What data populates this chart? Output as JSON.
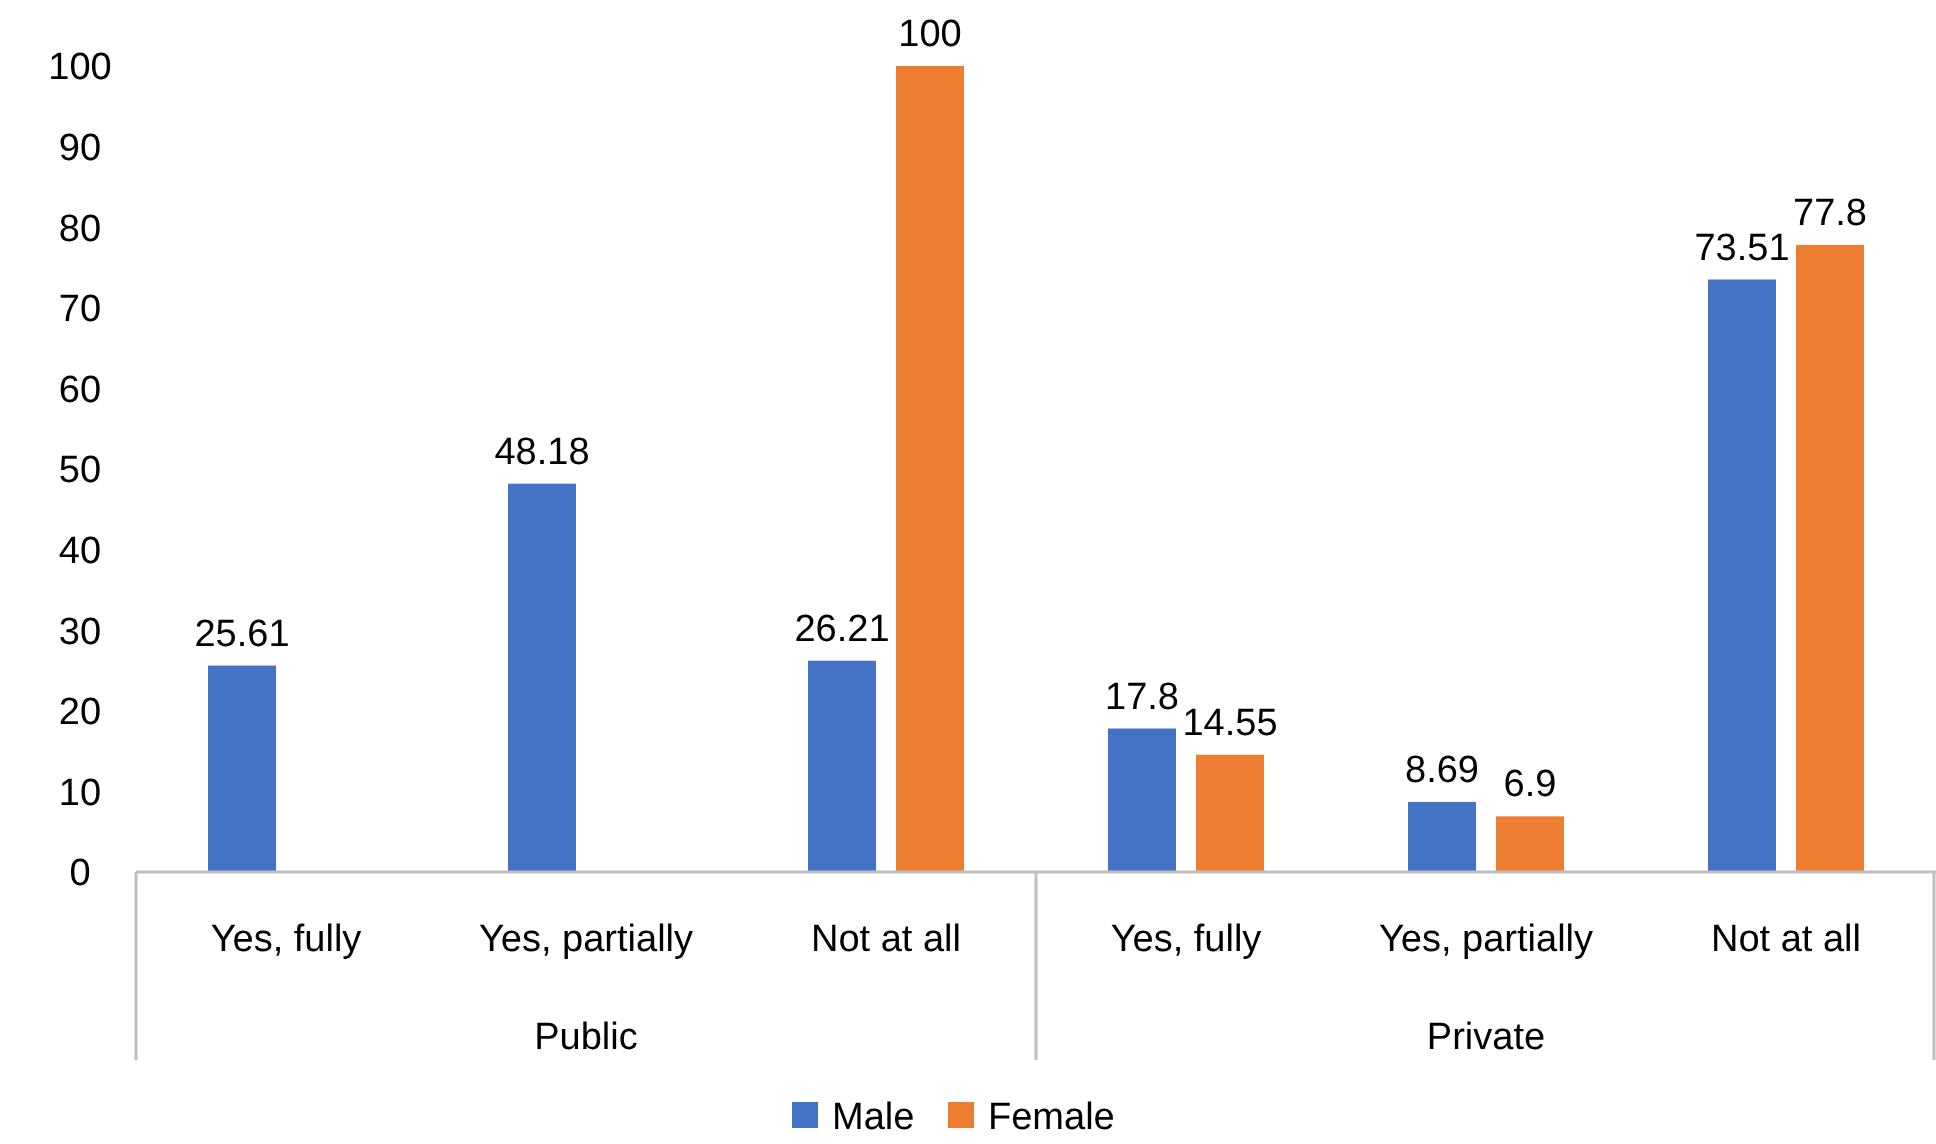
{
  "chart_data": {
    "type": "bar",
    "categories": [
      "Yes, fully",
      "Yes, partially",
      "Not at all",
      "Yes, fully",
      "Yes, partially",
      "Not at all"
    ],
    "series": [
      {
        "name": "Male",
        "color": "#4472c4",
        "values": [
          25.61,
          48.18,
          26.21,
          17.8,
          8.69,
          73.51
        ]
      },
      {
        "name": "Female",
        "color": "#ed7d31",
        "values": [
          null,
          null,
          100,
          14.55,
          6.9,
          77.8
        ]
      }
    ],
    "annotations": [
      "Public",
      "Private"
    ],
    "ylim": [
      0,
      100
    ],
    "yticks": [
      0,
      10,
      20,
      30,
      40,
      50,
      60,
      70,
      80,
      90,
      100
    ],
    "grid": false,
    "legend": "bottom",
    "data_labels": true
  }
}
